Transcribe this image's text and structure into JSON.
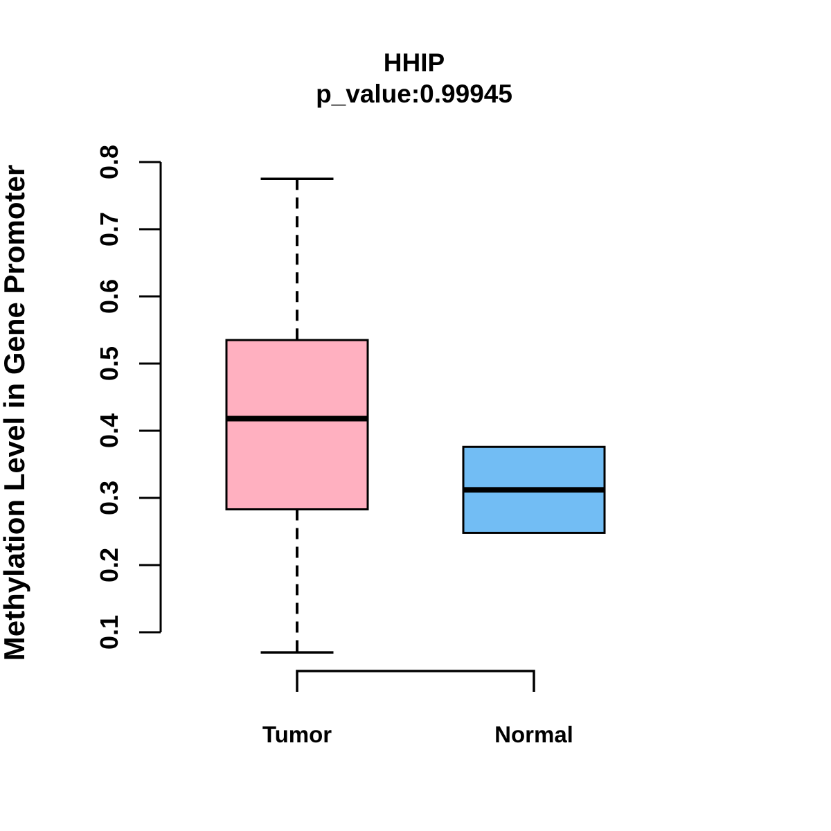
{
  "figure": {
    "background": "#ffffff"
  },
  "chart_data": {
    "type": "boxplot",
    "title": "HHIP",
    "subtitle": "p_value:0.99945",
    "ylabel": "Methylation Level in Gene Promoter",
    "xlabel": "",
    "ylim": [
      0.1,
      0.8
    ],
    "yticks": [
      0.1,
      0.2,
      0.3,
      0.4,
      0.5,
      0.6,
      0.7,
      0.8
    ],
    "ytick_labels": [
      "0.1",
      "0.2",
      "0.3",
      "0.4",
      "0.5",
      "0.6",
      "0.7",
      "0.8"
    ],
    "grid": false,
    "categories": [
      "Tumor",
      "Normal"
    ],
    "groups": [
      {
        "label": "Tumor",
        "box_color": "#FFB0C0",
        "lower_whisker": 0.07,
        "q1": 0.283,
        "median": 0.418,
        "q3": 0.535,
        "upper_whisker": 0.775
      },
      {
        "label": "Normal",
        "box_color": "#72BDF4",
        "lower_whisker": 0.248,
        "q1": 0.248,
        "median": 0.312,
        "q3": 0.376,
        "upper_whisker": 0.376
      }
    ],
    "stroke_color": "#000000"
  }
}
